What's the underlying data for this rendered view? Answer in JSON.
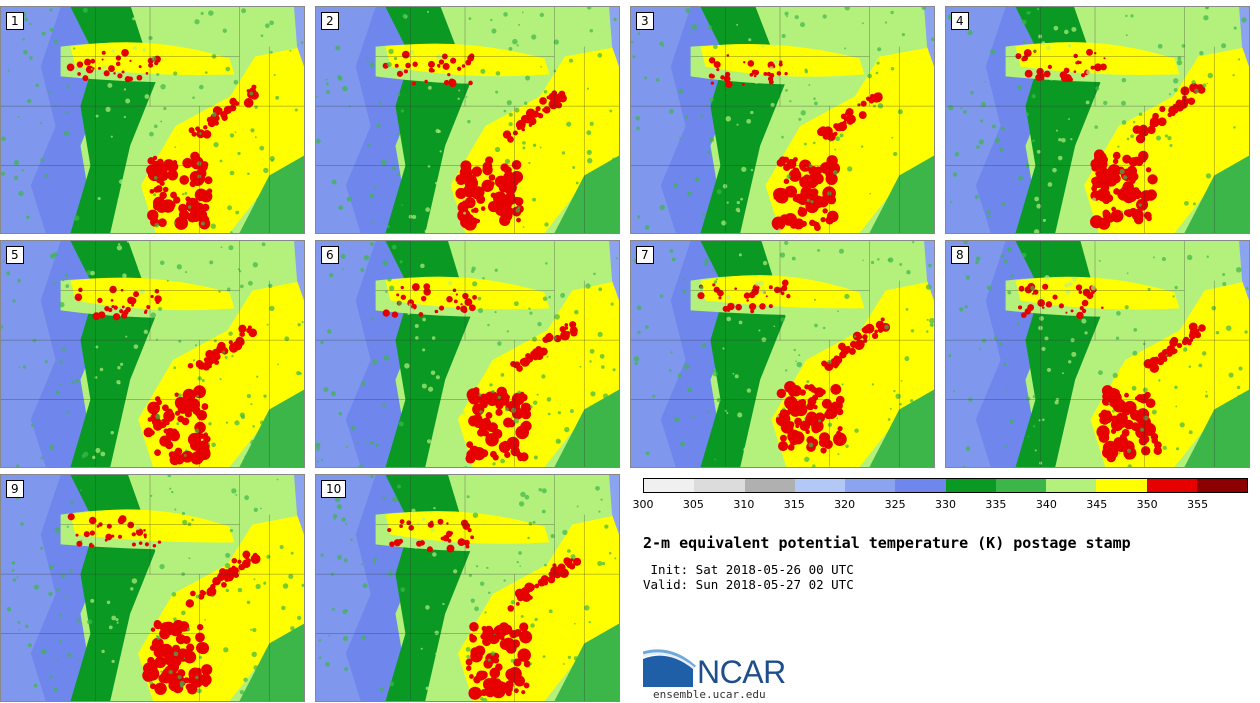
{
  "panels": [
    {
      "label": "1"
    },
    {
      "label": "2"
    },
    {
      "label": "3"
    },
    {
      "label": "4"
    },
    {
      "label": "5"
    },
    {
      "label": "6"
    },
    {
      "label": "7"
    },
    {
      "label": "8"
    },
    {
      "label": "9"
    },
    {
      "label": "10"
    }
  ],
  "colorbar": {
    "colors": [
      "#f0f0f0",
      "#dcdcdc",
      "#b0b0b0",
      "#b4c8f8",
      "#8ca4f0",
      "#6f86ec",
      "#0a9a24",
      "#3cb648",
      "#b4f07c",
      "#ffff00",
      "#e60000",
      "#8c0000"
    ],
    "ticks": [
      "300",
      "305",
      "310",
      "315",
      "320",
      "325",
      "330",
      "335",
      "340",
      "345",
      "350",
      "355"
    ]
  },
  "title": "2-m equivalent potential temperature (K) postage stamp",
  "init": " Init: Sat 2018-05-26 00 UTC",
  "valid": "Valid: Sun 2018-05-27 02 UTC",
  "logo": {
    "text": "NCAR",
    "url": "ensemble.ucar.edu"
  }
}
